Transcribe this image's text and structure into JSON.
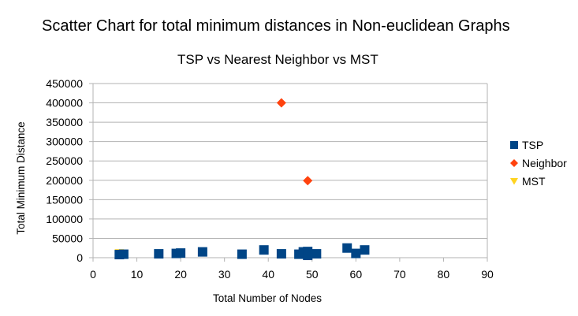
{
  "header": {
    "title": "Scatter Chart for total minimum distances in Non-euclidean Graphs",
    "subtitle": "TSP vs Nearest Neighbor vs MST"
  },
  "colors": {
    "tsp": "#004586",
    "neighbor": "#ff420e",
    "mst": "#ffd320",
    "grid": "#b3b3b3",
    "axis": "#b3b3b3"
  },
  "chart_data": {
    "type": "scatter",
    "title": "Scatter Chart for total minimum distances in Non-euclidean Graphs",
    "subtitle": "TSP vs Nearest Neighbor vs MST",
    "xlabel": "Total Number of Nodes",
    "ylabel": "Total Minimum Distance",
    "xlim": [
      0,
      90
    ],
    "ylim": [
      0,
      450000
    ],
    "x_ticks": [
      "0",
      "10",
      "20",
      "30",
      "40",
      "50",
      "60",
      "70",
      "80",
      "90"
    ],
    "y_ticks": [
      "0",
      "50000",
      "100000",
      "150000",
      "200000",
      "250000",
      "300000",
      "350000",
      "400000",
      "450000"
    ],
    "grid": "horizontal",
    "legend_position": "right",
    "series": [
      {
        "name": "TSP",
        "marker": "square",
        "points": [
          [
            6,
            8000
          ],
          [
            7,
            9000
          ],
          [
            15,
            10000
          ],
          [
            19,
            11000
          ],
          [
            20,
            12000
          ],
          [
            25,
            15000
          ],
          [
            34,
            9000
          ],
          [
            39,
            20000
          ],
          [
            43,
            10000
          ],
          [
            47,
            9000
          ],
          [
            48,
            15000
          ],
          [
            49,
            16000
          ],
          [
            49,
            6000
          ],
          [
            51,
            10000
          ],
          [
            58,
            25000
          ],
          [
            60,
            11000
          ],
          [
            62,
            20000
          ]
        ]
      },
      {
        "name": "Neighbor",
        "marker": "diamond",
        "points": [
          [
            43,
            400000
          ],
          [
            49,
            199000
          ],
          [
            6,
            9000
          ],
          [
            20,
            12000
          ],
          [
            48,
            15000
          ]
        ]
      },
      {
        "name": "MST",
        "marker": "triangle",
        "points": [
          [
            6,
            12000
          ],
          [
            7,
            7000
          ],
          [
            20,
            9000
          ],
          [
            49,
            8000
          ]
        ]
      }
    ]
  }
}
